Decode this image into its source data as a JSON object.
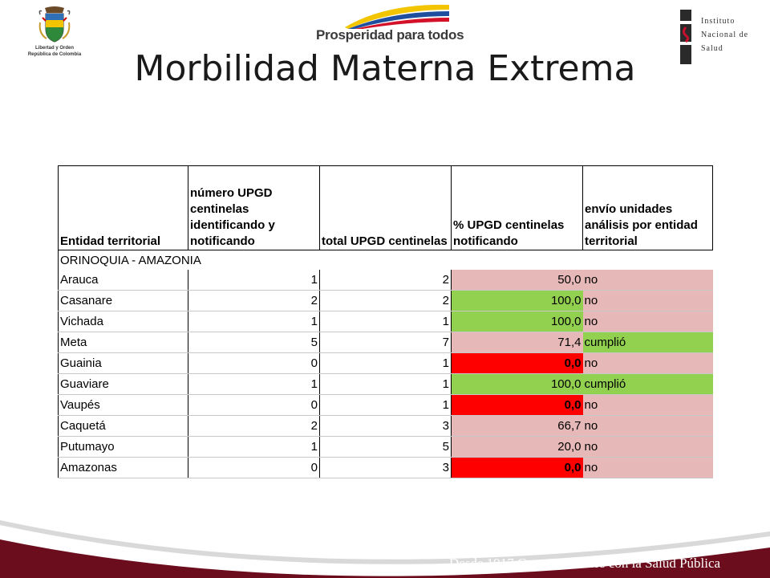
{
  "header": {
    "colombia_motto_line1": "Libertad y Orden",
    "colombia_motto_line2": "República de Colombia",
    "prosperidad_text": "Prosperidad para todos",
    "ins_line1": "Instituto",
    "ins_line2": "Nacional de",
    "ins_line3": "Salud",
    "title": "Morbilidad Materna Extrema"
  },
  "table": {
    "headers": [
      "Entidad territorial",
      "número UPGD centinelas identificando y notificando",
      "total UPGD centinelas",
      "% UPGD centinelas notificando",
      "envío unidades análisis por entidad territorial"
    ],
    "region": "ORINOQUIA - AMAZONIA",
    "rows": [
      {
        "entidad": "Arauca",
        "num": "1",
        "total": "2",
        "pct": "50,0",
        "envio": "no",
        "pct_color": "pink",
        "envio_color": "pink"
      },
      {
        "entidad": "Casanare",
        "num": "2",
        "total": "2",
        "pct": "100,0",
        "envio": "no",
        "pct_color": "green",
        "envio_color": "pink"
      },
      {
        "entidad": "Vichada",
        "num": "1",
        "total": "1",
        "pct": "100,0",
        "envio": "no",
        "pct_color": "green",
        "envio_color": "pink"
      },
      {
        "entidad": "Meta",
        "num": "5",
        "total": "7",
        "pct": "71,4",
        "envio": "cumplió",
        "pct_color": "pink",
        "envio_color": "green"
      },
      {
        "entidad": "Guainia",
        "num": "0",
        "total": "1",
        "pct": "0,0",
        "envio": "no",
        "pct_color": "red",
        "envio_color": "pink"
      },
      {
        "entidad": "Guaviare",
        "num": "1",
        "total": "1",
        "pct": "100,0",
        "envio": "cumplió",
        "pct_color": "green",
        "envio_color": "green"
      },
      {
        "entidad": "Vaupés",
        "num": "0",
        "total": "1",
        "pct": "0,0",
        "envio": "no",
        "pct_color": "red",
        "envio_color": "pink"
      },
      {
        "entidad": "Caquetá",
        "num": "2",
        "total": "3",
        "pct": "66,7",
        "envio": "no",
        "pct_color": "pink",
        "envio_color": "pink"
      },
      {
        "entidad": "Putumayo",
        "num": "1",
        "total": "5",
        "pct": "20,0",
        "envio": "no",
        "pct_color": "pink",
        "envio_color": "pink"
      },
      {
        "entidad": "Amazonas",
        "num": "0",
        "total": "3",
        "pct": "0,0",
        "envio": "no",
        "pct_color": "red",
        "envio_color": "pink"
      }
    ]
  },
  "footer": {
    "text": "Desde 1917 Comprometidos con la Salud Pública"
  },
  "colors": {
    "pink": "#e6b9b8",
    "green": "#92d050",
    "red": "#ff0000",
    "footer_maroon": "#6b0d1c"
  }
}
